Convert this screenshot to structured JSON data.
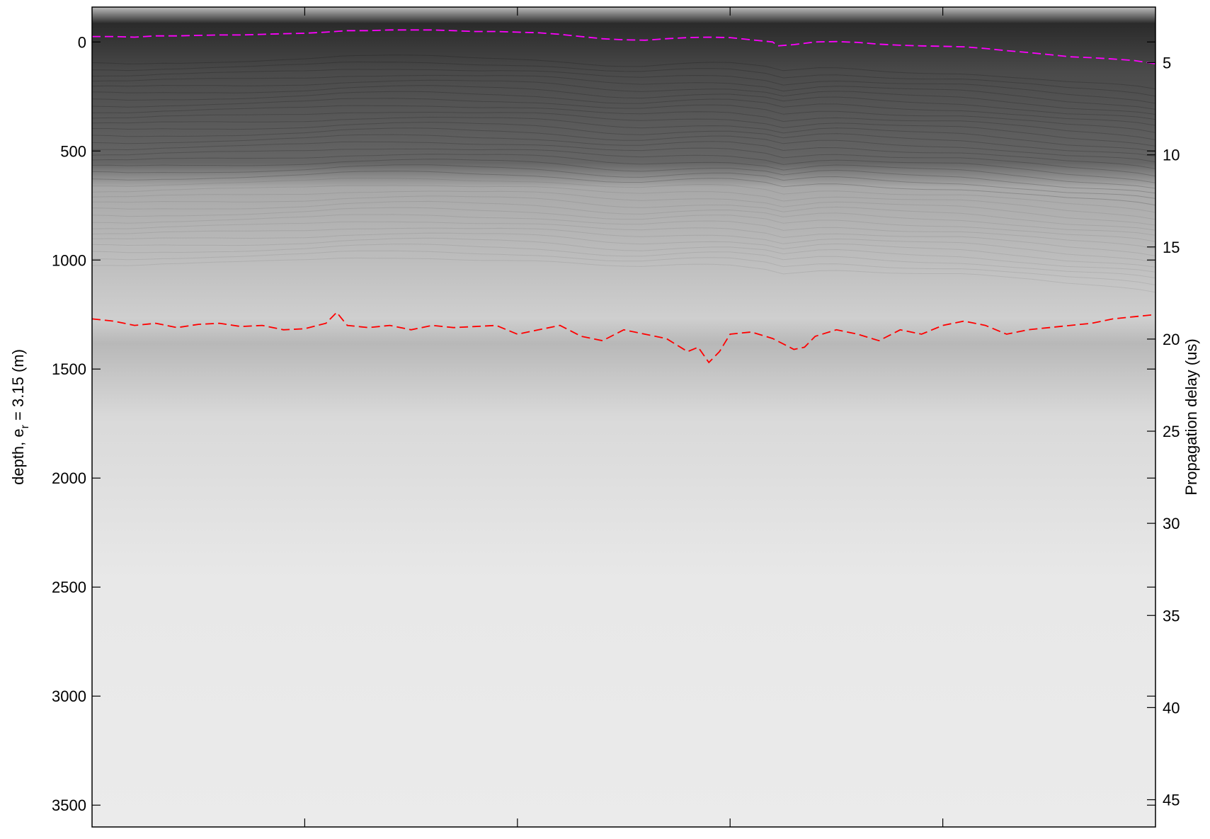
{
  "chart_data": {
    "type": "heatmap",
    "description_colormap": "grayscale",
    "title": "",
    "xlabel": "",
    "ylabel": {
      "text": "depth, e",
      "subscript": "r",
      "rest": " = 3.15 (m)"
    },
    "y2label": "Propagation delay (us)",
    "ylim": [
      -160,
      3600
    ],
    "y_reversed": true,
    "y_ticks": [
      0,
      500,
      1000,
      1500,
      2000,
      2500,
      3000,
      3500
    ],
    "y_tick_labels": [
      "0",
      "500",
      "1000",
      "1500",
      "2000",
      "2500",
      "3000",
      "3500"
    ],
    "y2_ticks": [
      5,
      10,
      15,
      20,
      25,
      30,
      35,
      40,
      45
    ],
    "y2_tick_labels": [
      "5",
      "10",
      "15",
      "20",
      "25",
      "30",
      "35",
      "40",
      "45"
    ],
    "y2_map": {
      "depth_at_5us": 95,
      "depth_per_us": 84.5
    },
    "x_ticks_unlabeled": [
      0.2,
      0.4,
      0.6,
      0.8
    ],
    "grid": false,
    "series": [
      {
        "name": "",
        "color": "#ff00ff",
        "style": "dashed",
        "x": [
          0,
          0.02,
          0.04,
          0.06,
          0.08,
          0.1,
          0.12,
          0.14,
          0.16,
          0.18,
          0.2,
          0.22,
          0.24,
          0.26,
          0.28,
          0.3,
          0.32,
          0.34,
          0.36,
          0.38,
          0.4,
          0.42,
          0.44,
          0.46,
          0.48,
          0.5,
          0.52,
          0.54,
          0.56,
          0.58,
          0.6,
          0.62,
          0.64,
          0.645,
          0.66,
          0.68,
          0.7,
          0.72,
          0.74,
          0.76,
          0.78,
          0.8,
          0.82,
          0.84,
          0.86,
          0.88,
          0.9,
          0.92,
          0.94,
          0.96,
          0.98,
          1.0
        ],
        "y": [
          -25,
          -25,
          -22,
          -28,
          -28,
          -30,
          -32,
          -32,
          -35,
          -38,
          -40,
          -45,
          -52,
          -52,
          -55,
          -55,
          -55,
          -52,
          -48,
          -48,
          -45,
          -42,
          -35,
          -25,
          -15,
          -10,
          -8,
          -15,
          -20,
          -22,
          -20,
          -10,
          0,
          18,
          12,
          0,
          -2,
          2,
          10,
          15,
          18,
          20,
          22,
          30,
          40,
          48,
          58,
          68,
          72,
          78,
          85,
          100
        ]
      },
      {
        "name": "",
        "color": "#ff0000",
        "style": "dashed",
        "x": [
          0,
          0.02,
          0.04,
          0.06,
          0.08,
          0.1,
          0.12,
          0.14,
          0.16,
          0.18,
          0.2,
          0.22,
          0.23,
          0.24,
          0.26,
          0.28,
          0.3,
          0.32,
          0.34,
          0.36,
          0.38,
          0.4,
          0.42,
          0.44,
          0.46,
          0.48,
          0.5,
          0.52,
          0.54,
          0.56,
          0.57,
          0.58,
          0.59,
          0.6,
          0.62,
          0.64,
          0.66,
          0.67,
          0.68,
          0.7,
          0.72,
          0.74,
          0.76,
          0.78,
          0.8,
          0.82,
          0.84,
          0.86,
          0.88,
          0.9,
          0.92,
          0.94,
          0.96,
          0.98,
          1.0
        ],
        "y": [
          1270,
          1280,
          1300,
          1290,
          1310,
          1295,
          1290,
          1305,
          1300,
          1320,
          1315,
          1290,
          1240,
          1300,
          1310,
          1300,
          1320,
          1300,
          1310,
          1305,
          1300,
          1340,
          1320,
          1300,
          1350,
          1370,
          1320,
          1340,
          1360,
          1420,
          1400,
          1470,
          1420,
          1340,
          1330,
          1360,
          1410,
          1400,
          1350,
          1320,
          1340,
          1370,
          1320,
          1340,
          1300,
          1280,
          1300,
          1340,
          1320,
          1310,
          1300,
          1290,
          1270,
          1260,
          1250
        ]
      }
    ]
  }
}
